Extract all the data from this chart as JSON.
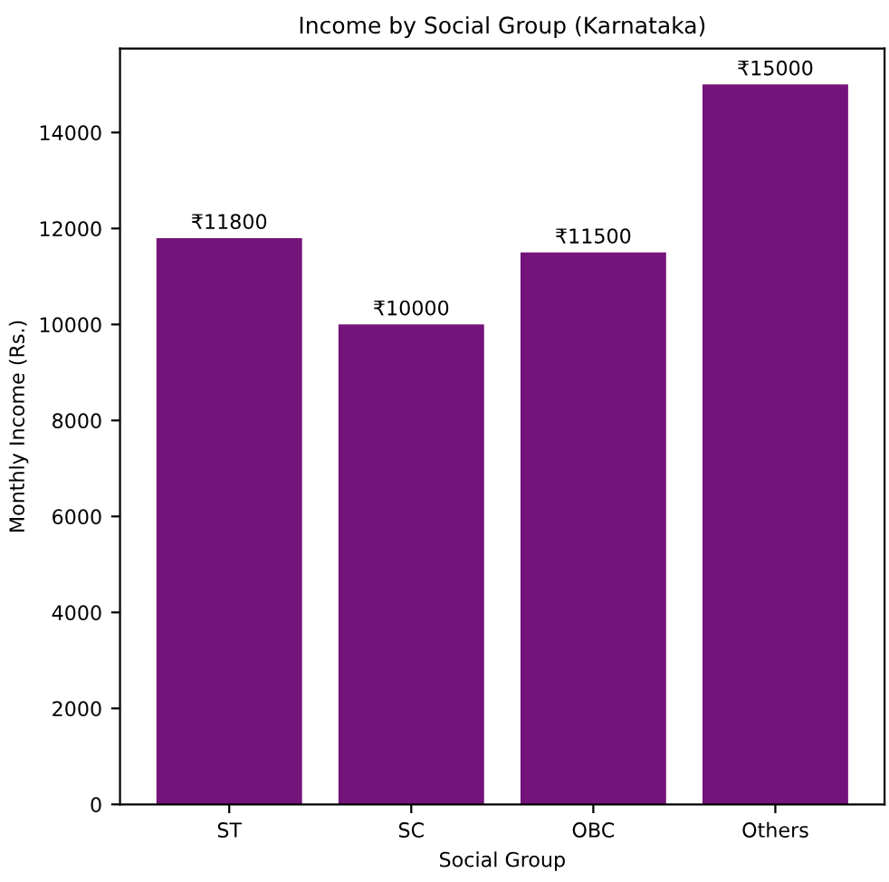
{
  "chart_data": {
    "type": "bar",
    "title": "Income by Social Group (Karnataka)",
    "xlabel": "Social Group",
    "ylabel": "Monthly Income (Rs.)",
    "categories": [
      "ST",
      "SC",
      "OBC",
      "Others"
    ],
    "values": [
      11800,
      10000,
      11500,
      15000
    ],
    "value_labels": [
      "₹11800",
      "₹10000",
      "₹11500",
      "₹15000"
    ],
    "color": "#74137a",
    "ylim": [
      0,
      15750
    ],
    "yticks": [
      0,
      2000,
      4000,
      6000,
      8000,
      10000,
      12000,
      14000
    ],
    "grid": false,
    "legend": false
  }
}
